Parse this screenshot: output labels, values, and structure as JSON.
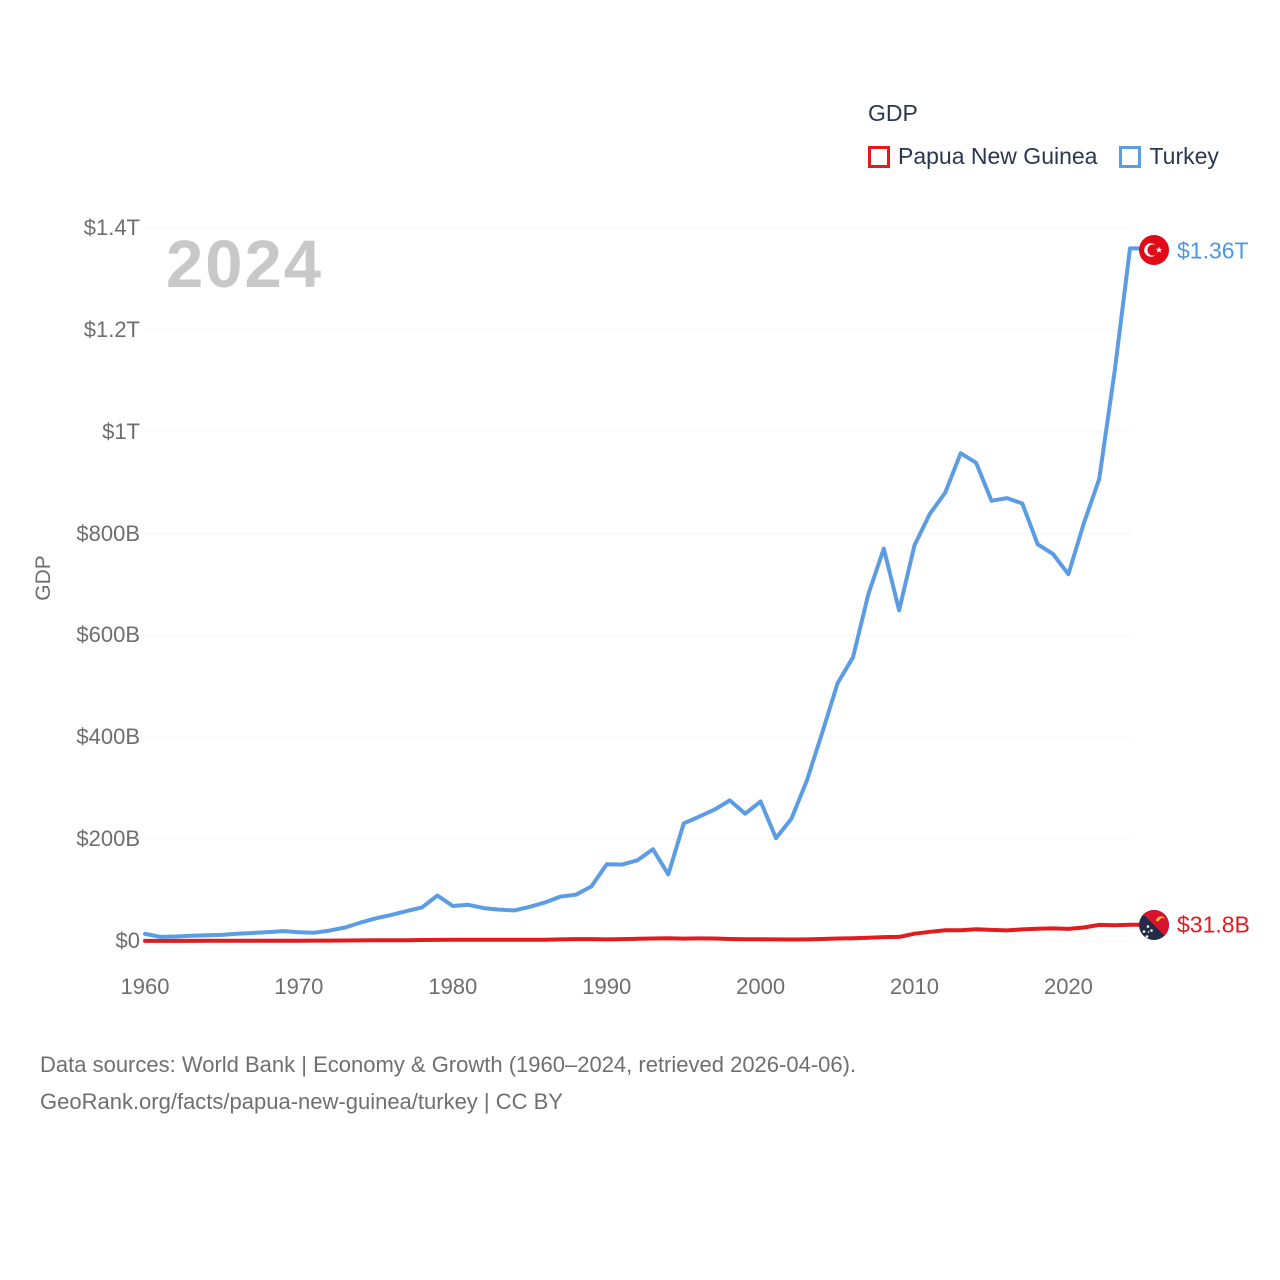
{
  "watermark": "2024",
  "legend": {
    "title": "GDP",
    "items": [
      {
        "label": "Papua New Guinea",
        "color": "#e11b1e"
      },
      {
        "label": "Turkey",
        "color": "#5b9ce3"
      }
    ]
  },
  "y_axis": {
    "title": "GDP",
    "ticks": [
      {
        "value": 0,
        "label": "$0"
      },
      {
        "value": 200,
        "label": "$200B"
      },
      {
        "value": 400,
        "label": "$400B"
      },
      {
        "value": 600,
        "label": "$600B"
      },
      {
        "value": 800,
        "label": "$800B"
      },
      {
        "value": 1000,
        "label": "$1T"
      },
      {
        "value": 1200,
        "label": "$1.2T"
      },
      {
        "value": 1400,
        "label": "$1.4T"
      }
    ]
  },
  "x_axis": {
    "ticks": [
      {
        "value": 1960,
        "label": "1960"
      },
      {
        "value": 1970,
        "label": "1970"
      },
      {
        "value": 1980,
        "label": "1980"
      },
      {
        "value": 1990,
        "label": "1990"
      },
      {
        "value": 2000,
        "label": "2000"
      },
      {
        "value": 2010,
        "label": "2010"
      },
      {
        "value": 2020,
        "label": "2020"
      }
    ]
  },
  "end_labels": {
    "turkey": {
      "text": "$1.36T",
      "color": "#4d97e3",
      "flag": "turkey-flag"
    },
    "papua_new_guinea": {
      "text": "$31.8B",
      "color": "#e11b1e",
      "flag": "papua-new-guinea-flag"
    }
  },
  "footer": {
    "line1": "Data sources: World Bank | Economy & Growth (1960–2024, retrieved 2026-04-06).",
    "line2": "GeoRank.org/facts/papua-new-guinea/turkey | CC BY"
  },
  "chart_data": {
    "type": "line",
    "title": "GDP",
    "ylabel": "GDP",
    "unit": "current US$, billions",
    "x_range": [
      1960,
      2024
    ],
    "y_range": [
      0,
      1400
    ],
    "grid": "horizontal-dotted",
    "legend_position": "top-right",
    "years": [
      1960,
      1961,
      1962,
      1963,
      1964,
      1965,
      1966,
      1967,
      1968,
      1969,
      1970,
      1971,
      1972,
      1973,
      1974,
      1975,
      1976,
      1977,
      1978,
      1979,
      1980,
      1981,
      1982,
      1983,
      1984,
      1985,
      1986,
      1987,
      1988,
      1989,
      1990,
      1991,
      1992,
      1993,
      1994,
      1995,
      1996,
      1997,
      1998,
      1999,
      2000,
      2001,
      2002,
      2003,
      2004,
      2005,
      2006,
      2007,
      2008,
      2009,
      2010,
      2011,
      2012,
      2013,
      2014,
      2015,
      2016,
      2017,
      2018,
      2019,
      2020,
      2021,
      2022,
      2023,
      2024
    ],
    "series": [
      {
        "name": "Papua New Guinea",
        "color": "#e11b1e",
        "end_label": "$31.8B",
        "values": [
          0.23,
          0.24,
          0.25,
          0.27,
          0.3,
          0.34,
          0.39,
          0.44,
          0.51,
          0.58,
          0.65,
          0.71,
          0.81,
          1.06,
          1.26,
          1.34,
          1.52,
          1.66,
          1.92,
          2.23,
          2.55,
          2.5,
          2.45,
          2.57,
          2.54,
          2.43,
          2.61,
          3.07,
          3.65,
          3.66,
          3.22,
          3.79,
          4.38,
          4.97,
          5.5,
          4.64,
          5.15,
          4.86,
          3.85,
          3.53,
          3.52,
          3.06,
          2.96,
          3.22,
          3.89,
          4.88,
          5.58,
          6.34,
          7.66,
          8.09,
          14.25,
          17.98,
          21.29,
          21.28,
          23.22,
          21.72,
          20.76,
          22.73,
          24.11,
          24.83,
          23.85,
          26.59,
          31.61,
          30.93,
          31.8
        ]
      },
      {
        "name": "Turkey",
        "color": "#5b9ce3",
        "end_label": "$1.36T",
        "values": [
          14.0,
          8.0,
          8.9,
          10.4,
          11.2,
          11.9,
          14.1,
          15.7,
          17.5,
          19.5,
          17.1,
          16.3,
          20.4,
          26.6,
          36.2,
          44.6,
          51.3,
          58.7,
          65.9,
          89.4,
          68.8,
          71.0,
          64.6,
          61.7,
          60.0,
          67.2,
          75.7,
          87.2,
          90.9,
          107.1,
          150.7,
          150.0,
          158.5,
          180.2,
          130.7,
          231.0,
          244.0,
          258.0,
          276.0,
          250.0,
          274.0,
          202.0,
          240.0,
          314.6,
          408.9,
          506.3,
          557.1,
          681.3,
          770.4,
          649.3,
          777.0,
          838.8,
          880.6,
          957.8,
          938.9,
          864.3,
          869.7,
          859.0,
          779.0,
          759.9,
          720.3,
          819.9,
          907.1,
          1118.0,
          1360.0
        ]
      }
    ]
  }
}
